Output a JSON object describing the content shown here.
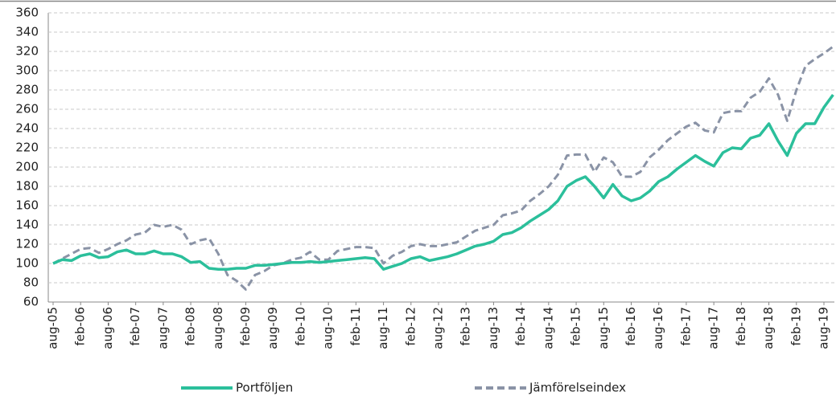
{
  "chart_data": {
    "type": "line",
    "categories": [
      "aug-05",
      null,
      null,
      "feb-06",
      null,
      null,
      "aug-06",
      null,
      null,
      "feb-07",
      null,
      null,
      "aug-07",
      null,
      null,
      "feb-08",
      null,
      null,
      "aug-08",
      null,
      null,
      "feb-09",
      null,
      null,
      "aug-09",
      null,
      null,
      "feb-10",
      null,
      null,
      "aug-10",
      null,
      null,
      "feb-11",
      null,
      null,
      "aug-11",
      null,
      null,
      "feb-12",
      null,
      null,
      "aug-12",
      null,
      null,
      "feb-13",
      null,
      null,
      "aug-13",
      null,
      null,
      "feb-14",
      null,
      null,
      "aug-14",
      null,
      null,
      "feb-15",
      null,
      null,
      "aug-15",
      null,
      null,
      "feb-16",
      null,
      null,
      "aug-16",
      null,
      null,
      "feb-17",
      null,
      null,
      "aug-17",
      null,
      null,
      "feb-18",
      null,
      null,
      "aug-18",
      null,
      null,
      "feb-19",
      null,
      null,
      "aug-19",
      null
    ],
    "series": [
      {
        "name": "Portföljen",
        "color": "#2bbf9b",
        "dash": false,
        "values": [
          100,
          104,
          103,
          108,
          110,
          106,
          107,
          112,
          114,
          110,
          110,
          113,
          110,
          110,
          107,
          101,
          102,
          95,
          94,
          94,
          95,
          95,
          98,
          98,
          99,
          100,
          101,
          101,
          102,
          101,
          102,
          103,
          104,
          105,
          106,
          105,
          94,
          97,
          100,
          105,
          107,
          103,
          105,
          107,
          110,
          114,
          118,
          120,
          123,
          130,
          132,
          137,
          144,
          150,
          156,
          165,
          180,
          186,
          190,
          180,
          168,
          182,
          170,
          165,
          168,
          175,
          185,
          190,
          198,
          205,
          212,
          206,
          201,
          215,
          220,
          219,
          230,
          233,
          245,
          227,
          212,
          235,
          245,
          245,
          262,
          275
        ]
      },
      {
        "name": "Jämförelseindex",
        "color": "#8a93a6",
        "dash": true,
        "values": [
          100,
          105,
          110,
          115,
          116,
          111,
          115,
          120,
          124,
          130,
          132,
          140,
          138,
          140,
          135,
          120,
          124,
          126,
          110,
          88,
          82,
          73,
          88,
          92,
          98,
          100,
          104,
          106,
          112,
          104,
          104,
          113,
          115,
          117,
          117,
          116,
          100,
          108,
          112,
          118,
          120,
          118,
          118,
          120,
          122,
          128,
          134,
          137,
          140,
          150,
          152,
          155,
          165,
          172,
          180,
          192,
          212,
          213,
          213,
          195,
          210,
          205,
          190,
          190,
          195,
          210,
          218,
          228,
          235,
          242,
          246,
          238,
          236,
          256,
          258,
          258,
          272,
          278,
          292,
          275,
          248,
          280,
          305,
          312,
          318,
          325
        ]
      }
    ],
    "ylim": [
      60,
      360
    ],
    "yticks": [
      60,
      80,
      100,
      120,
      140,
      160,
      180,
      200,
      220,
      240,
      260,
      280,
      300,
      320,
      340,
      360
    ],
    "grid": true
  }
}
